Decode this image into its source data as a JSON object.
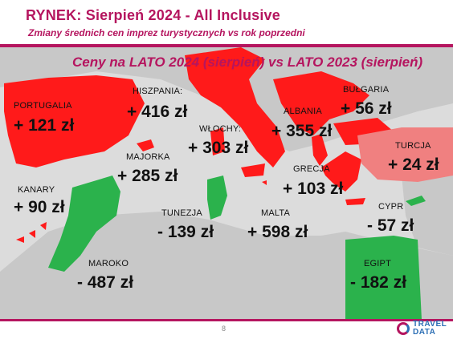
{
  "header": {
    "title": "RYNEK: Sierpień 2024 - All Inclusive",
    "subtitle": "Zmiany średnich cen imprez turystycznych vs rok poprzedni"
  },
  "map": {
    "title": "Ceny na LATO 2024 (sierpień) vs  LATO 2023 (sierpień)",
    "colors": {
      "increase": "#ff1a1a",
      "small_increase": "#f08080",
      "decrease": "#2bb24c",
      "land": "#c8c8c8",
      "sea": "#dcdcdc"
    },
    "countries": [
      {
        "label": "PORTUGALIA",
        "value": "+ 121 zł"
      },
      {
        "label": "HISZPANIA:",
        "value": "+ 416 zł"
      },
      {
        "label": "WŁOCHY:",
        "value": "+ 303 zł"
      },
      {
        "label": "ALBANIA",
        "value": "+ 355 zł"
      },
      {
        "label": "BUŁGARIA",
        "value": "+ 56 zł"
      },
      {
        "label": "TURCJA",
        "value": "+ 24 zł"
      },
      {
        "label": "MAJORKA",
        "value": "+ 285 zł"
      },
      {
        "label": "GRECJA",
        "value": "+ 103 zł"
      },
      {
        "label": "KANARY",
        "value": "+ 90 zł"
      },
      {
        "label": "TUNEZJA",
        "value": "- 139 zł"
      },
      {
        "label": "MALTA",
        "value": "+ 598 zł"
      },
      {
        "label": "CYPR",
        "value": "- 57 zł"
      },
      {
        "label": "MAROKO",
        "value": "- 487 zł"
      },
      {
        "label": "EGIPT",
        "value": "- 182 zł"
      }
    ]
  },
  "footer": {
    "page_number": "8",
    "logo_line1": "TRAVEL",
    "logo_line2": "DATA",
    "logo_icon": "travel-data-logo-icon"
  }
}
